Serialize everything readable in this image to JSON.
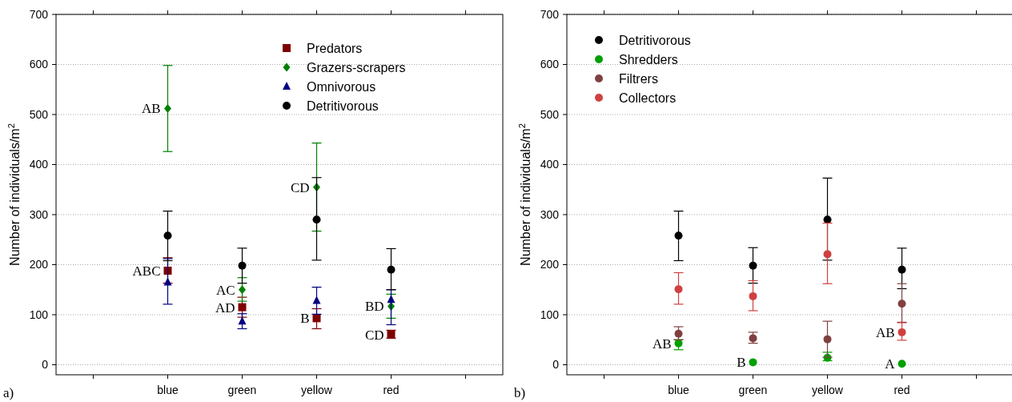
{
  "chart_data": [
    {
      "type": "scatter",
      "ylabel": "Number of individuals/m$^{2}$",
      "categories": [
        null,
        "blue",
        "green",
        "yellow",
        "red",
        null
      ],
      "ylim": [
        -20,
        700
      ],
      "yticks": [
        0,
        100,
        200,
        300,
        400,
        500,
        600,
        700
      ],
      "grid": "y",
      "legend": "top right",
      "series": [
        {
          "name": "Predators",
          "color": "#800000",
          "marker": "square",
          "values": [
            null,
            188,
            115,
            93,
            60,
            null
          ],
          "errors": [
            null,
            [
              163,
              214
            ],
            [
              95,
              135
            ],
            [
              72,
              112
            ],
            [
              53,
              69
            ],
            null
          ]
        },
        {
          "name": "Grazers-scrapers",
          "color": "#008000",
          "marker": "diamond",
          "values": [
            null,
            512,
            150,
            355,
            117,
            null
          ],
          "errors": [
            null,
            [
              426,
              598
            ],
            [
              127,
              174
            ],
            [
              267,
              443
            ],
            [
              93,
              141
            ],
            null
          ]
        },
        {
          "name": "Omnivorous",
          "color": "#000080",
          "marker": "triangle",
          "values": [
            null,
            165,
            87,
            128,
            130,
            null
          ],
          "errors": [
            null,
            [
              121,
              212
            ],
            [
              72,
              102
            ],
            [
              101,
              155
            ],
            [
              80,
              150
            ],
            null
          ]
        },
        {
          "name": "Detritivorous",
          "color": "#000000",
          "marker": "circle",
          "values": [
            null,
            258,
            198,
            290,
            190,
            null
          ],
          "errors": [
            null,
            [
              208,
              307
            ],
            [
              163,
              233
            ],
            [
              209,
              374
            ],
            [
              150,
              232
            ],
            null
          ]
        }
      ],
      "annotations": [
        {
          "text": "AB",
          "x": "blue",
          "y": 512
        },
        {
          "text": "ABC",
          "x": "blue",
          "y": 188
        },
        {
          "text": "AC",
          "x": "green",
          "y": 150
        },
        {
          "text": "AD",
          "x": "green",
          "y": 115
        },
        {
          "text": "CD",
          "x": "yellow",
          "y": 355
        },
        {
          "text": "B",
          "x": "yellow",
          "y": 93
        },
        {
          "text": "BD",
          "x": "red",
          "y": 117
        },
        {
          "text": "CD",
          "x": "red",
          "y": 60
        },
        "a)"
      ]
    },
    {
      "type": "scatter",
      "ylabel": "Number of individuals/m$^{2}$",
      "categories": [
        null,
        "blue",
        "green",
        "yellow",
        "red",
        null
      ],
      "ylim": [
        -20,
        700
      ],
      "yticks": [
        0,
        100,
        200,
        300,
        400,
        500,
        600,
        700
      ],
      "grid": "y",
      "legend": "top left",
      "series": [
        {
          "name": "Detritivorous",
          "color": "#000000",
          "marker": "circle",
          "values": [
            null,
            258,
            198,
            290,
            190,
            null
          ],
          "errors": [
            null,
            [
              208,
              307
            ],
            [
              163,
              234
            ],
            [
              209,
              373
            ],
            [
              152,
              233
            ],
            null
          ]
        },
        {
          "name": "Shredders",
          "color": "#00a000",
          "marker": "circle",
          "values": [
            null,
            43,
            5,
            14,
            2,
            null
          ],
          "errors": [
            null,
            [
              30,
              50
            ],
            null,
            [
              8,
              25
            ],
            null,
            null
          ]
        },
        {
          "name": "Filtrers",
          "color": "#804040",
          "marker": "circle",
          "values": [
            null,
            62,
            53,
            51,
            122,
            null
          ],
          "errors": [
            null,
            [
              50,
              76
            ],
            [
              43,
              65
            ],
            [
              15,
              87
            ],
            [
              85,
              162
            ],
            null
          ]
        },
        {
          "name": "Collectors",
          "color": "#d04040",
          "marker": "circle",
          "values": [
            null,
            151,
            137,
            221,
            65,
            null
          ],
          "errors": [
            null,
            [
              121,
              184
            ],
            [
              108,
              168
            ],
            [
              162,
              283
            ],
            [
              49,
              84
            ],
            null
          ]
        }
      ],
      "annotations": [
        {
          "text": "AB",
          "x": "blue",
          "y": 43
        },
        {
          "text": "B",
          "x": "green",
          "y": 5
        },
        {
          "text": "AB",
          "x": "red",
          "y": 65
        },
        {
          "text": "A",
          "x": "red",
          "y": 2
        },
        "b)"
      ]
    }
  ]
}
